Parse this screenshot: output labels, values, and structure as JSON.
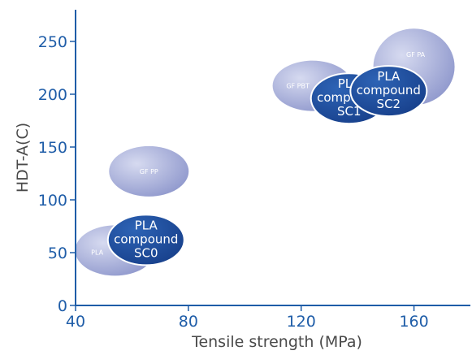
{
  "chart_data": {
    "type": "scatter",
    "title": "",
    "xlabel": "Tensile strength (MPa)",
    "ylabel": "HDT-A(C)",
    "xlim": [
      40,
      180
    ],
    "ylim": [
      0,
      280
    ],
    "xticks": [
      "40",
      "80",
      "120",
      "160"
    ],
    "yticks": [
      "0",
      "50",
      "100",
      "150",
      "200",
      "250"
    ],
    "grid": false,
    "legend": "none",
    "points": [
      {
        "label": "PLA",
        "x": 54,
        "y": 52,
        "highlight": false
      },
      {
        "label": "GF PP",
        "x": 66,
        "y": 127,
        "highlight": false
      },
      {
        "label": "GF PBT",
        "x": 124,
        "y": 208,
        "highlight": false
      },
      {
        "label": "GF PA",
        "x": 160,
        "y": 226,
        "highlight": false
      },
      {
        "label": "PLA compound SC0",
        "x": 65,
        "y": 62,
        "highlight": true
      },
      {
        "label": "PLA compound SC1",
        "x": 137,
        "y": 196,
        "highlight": true
      },
      {
        "label": "PLA compound SC2",
        "x": 151,
        "y": 203,
        "highlight": true
      }
    ],
    "colors": {
      "axis": "#1f5da8",
      "highlight_fill": "#1f4f9e",
      "base_fill": "#a9b0d9"
    }
  }
}
